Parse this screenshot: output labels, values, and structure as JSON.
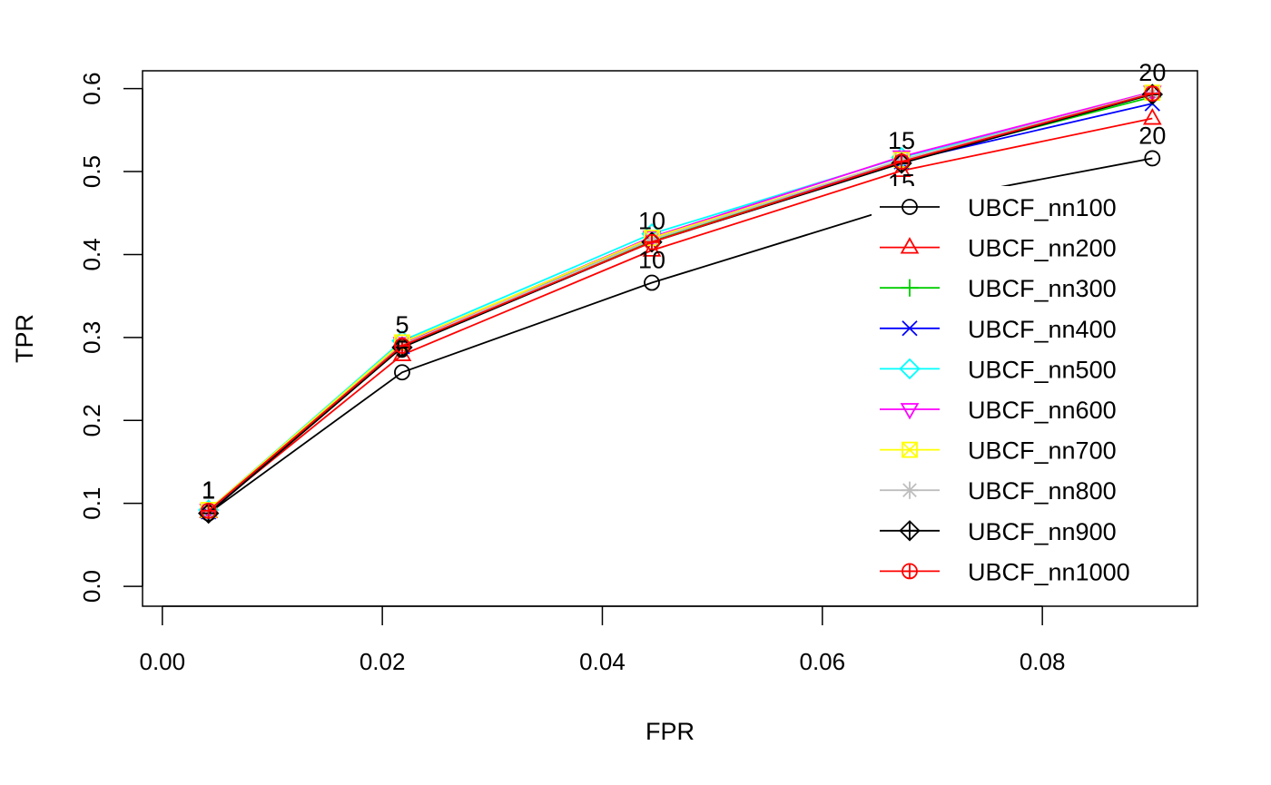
{
  "chart_data": {
    "type": "line",
    "xlabel": "FPR",
    "ylabel": "TPR",
    "xlim": [
      -0.0018,
      0.0941
    ],
    "ylim": [
      -0.024,
      0.6215
    ],
    "x_ticks": [
      0.0,
      0.02,
      0.04,
      0.06,
      0.08
    ],
    "x_tick_labels": [
      "0.00",
      "0.02",
      "0.04",
      "0.06",
      "0.08"
    ],
    "y_ticks": [
      0.0,
      0.1,
      0.2,
      0.3,
      0.4,
      0.5,
      0.6
    ],
    "y_tick_labels": [
      "0.0",
      "0.1",
      "0.2",
      "0.3",
      "0.4",
      "0.5",
      "0.6"
    ],
    "grid": false,
    "legend_position": "right",
    "point_labels": [
      "1",
      "5",
      "10",
      "15",
      "20"
    ],
    "series": [
      {
        "name": "UBCF_nn100",
        "color": "#000000",
        "marker": "circle",
        "x": [
          0.0042,
          0.0218,
          0.0445,
          0.0672,
          0.09
        ],
        "y": [
          0.088,
          0.258,
          0.366,
          0.459,
          0.516
        ],
        "labels": [
          "1",
          "5",
          "10",
          "15",
          "20"
        ]
      },
      {
        "name": "UBCF_nn200",
        "color": "#ff0000",
        "marker": "triangle-up",
        "x": [
          0.0042,
          0.0218,
          0.0445,
          0.0672,
          0.09
        ],
        "y": [
          0.09,
          0.279,
          0.405,
          0.501,
          0.564
        ],
        "labels": [
          "",
          "",
          "",
          "",
          ""
        ]
      },
      {
        "name": "UBCF_nn300",
        "color": "#00cd00",
        "marker": "plus",
        "x": [
          0.0042,
          0.0218,
          0.0445,
          0.0672,
          0.09
        ],
        "y": [
          0.091,
          0.288,
          0.416,
          0.512,
          0.59
        ],
        "labels": [
          "",
          "",
          "",
          "",
          ""
        ]
      },
      {
        "name": "UBCF_nn400",
        "color": "#0000ff",
        "marker": "x",
        "x": [
          0.0042,
          0.0218,
          0.0445,
          0.0672,
          0.09
        ],
        "y": [
          0.09,
          0.289,
          0.42,
          0.512,
          0.582
        ],
        "labels": [
          "",
          "",
          "",
          "",
          ""
        ]
      },
      {
        "name": "UBCF_nn500",
        "color": "#00ffff",
        "marker": "diamond",
        "x": [
          0.0042,
          0.0218,
          0.0445,
          0.0672,
          0.09
        ],
        "y": [
          0.092,
          0.296,
          0.425,
          0.517,
          0.593
        ],
        "labels": [
          "",
          "",
          "",
          "",
          ""
        ]
      },
      {
        "name": "UBCF_nn600",
        "color": "#ff00ff",
        "marker": "triangle-down",
        "x": [
          0.0042,
          0.0218,
          0.0445,
          0.0672,
          0.09
        ],
        "y": [
          0.092,
          0.293,
          0.421,
          0.518,
          0.596
        ],
        "labels": [
          "",
          "",
          "",
          "",
          ""
        ]
      },
      {
        "name": "UBCF_nn700",
        "color": "#ffff00",
        "marker": "square-x",
        "x": [
          0.0042,
          0.0218,
          0.0445,
          0.0672,
          0.09
        ],
        "y": [
          0.092,
          0.294,
          0.42,
          0.514,
          0.595
        ],
        "labels": [
          "",
          "",
          "",
          "",
          ""
        ]
      },
      {
        "name": "UBCF_nn800",
        "color": "#bebebe",
        "marker": "asterisk",
        "x": [
          0.0042,
          0.0218,
          0.0445,
          0.0672,
          0.09
        ],
        "y": [
          0.091,
          0.291,
          0.418,
          0.514,
          0.595
        ],
        "labels": [
          "",
          "",
          "",
          "",
          ""
        ]
      },
      {
        "name": "UBCF_nn900",
        "color": "#000000",
        "marker": "diamond-plus",
        "x": [
          0.0042,
          0.0218,
          0.0445,
          0.0672,
          0.09
        ],
        "y": [
          0.088,
          0.288,
          0.415,
          0.51,
          0.593
        ],
        "labels": [
          "",
          "",
          "",
          "",
          ""
        ]
      },
      {
        "name": "UBCF_nn1000",
        "color": "#ff0000",
        "marker": "circle-plus",
        "x": [
          0.0042,
          0.0218,
          0.0445,
          0.0672,
          0.09
        ],
        "y": [
          0.091,
          0.29,
          0.415,
          0.512,
          0.594
        ],
        "labels": [
          "1",
          "5",
          "10",
          "15",
          "20"
        ]
      }
    ]
  }
}
